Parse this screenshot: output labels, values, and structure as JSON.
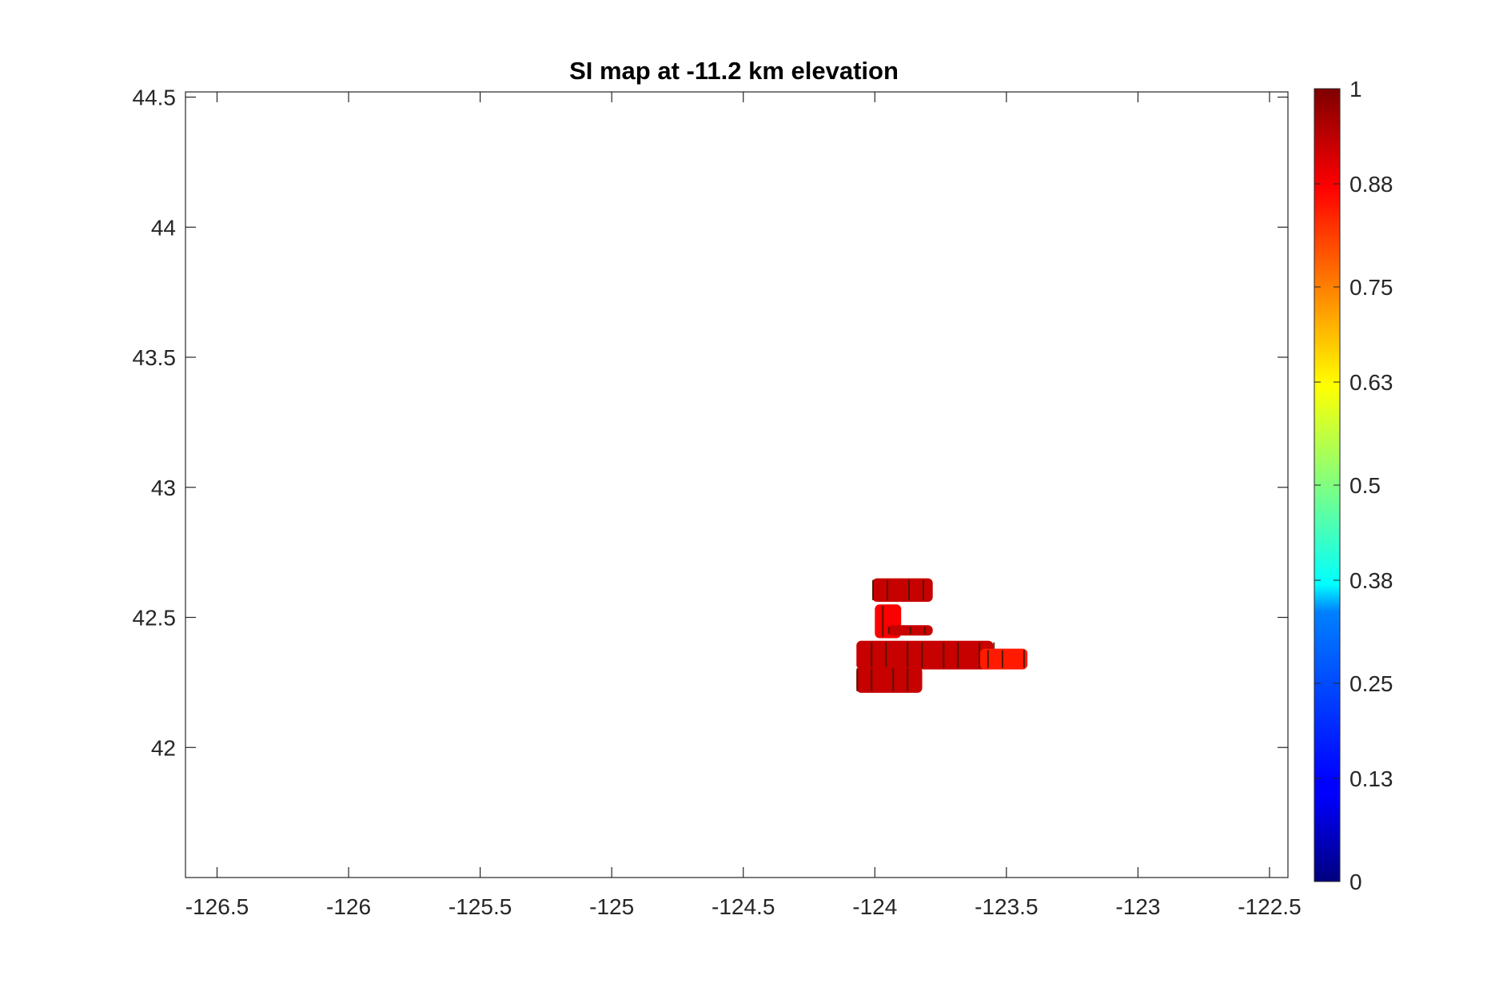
{
  "chart_data": {
    "type": "heatmap",
    "title": "SI map at -11.2 km elevation",
    "xlabel": "",
    "ylabel": "",
    "xlim": [
      -126.62,
      -122.43
    ],
    "ylim": [
      41.5,
      44.52
    ],
    "x_ticks": [
      -126.5,
      -126,
      -125.5,
      -125,
      -124.5,
      -124,
      -123.5,
      -123,
      -122.5
    ],
    "x_tick_labels": [
      "-126.5",
      "-126",
      "-125.5",
      "-125",
      "-124.5",
      "-124",
      "-123.5",
      "-123",
      "-122.5"
    ],
    "y_ticks": [
      42,
      42.5,
      43,
      43.5,
      44,
      44.5
    ],
    "y_tick_labels": [
      "42",
      "42.5",
      "43",
      "43.5",
      "44",
      "44.5"
    ],
    "grid": false,
    "colormap": "jet",
    "colorbar": {
      "range": [
        0,
        1
      ],
      "ticks": [
        0,
        0.13,
        0.25,
        0.38,
        0.5,
        0.63,
        0.75,
        0.88,
        1
      ],
      "tick_labels": [
        "0",
        "0.13",
        "0.25",
        "0.38",
        "0.5",
        "0.63",
        "0.75",
        "0.88",
        "1"
      ]
    },
    "data_region": {
      "description_values": "SI values near 0.88-0.95 (red) with orange/dark streaks",
      "patches": [
        {
          "lon": [
            -124.01,
            -123.78
          ],
          "lat": [
            42.56,
            42.65
          ],
          "value": 0.93
        },
        {
          "lon": [
            -124.0,
            -123.9
          ],
          "lat": [
            42.42,
            42.55
          ],
          "value": 0.88
        },
        {
          "lon": [
            -123.95,
            -123.78
          ],
          "lat": [
            42.43,
            42.47
          ],
          "value": 0.93
        },
        {
          "lon": [
            -124.07,
            -123.55
          ],
          "lat": [
            42.3,
            42.41
          ],
          "value": 0.93
        },
        {
          "lon": [
            -123.6,
            -123.42
          ],
          "lat": [
            42.3,
            42.38
          ],
          "value": 0.85
        },
        {
          "lon": [
            -124.07,
            -123.82
          ],
          "lat": [
            42.21,
            42.31
          ],
          "value": 0.93
        }
      ]
    }
  }
}
